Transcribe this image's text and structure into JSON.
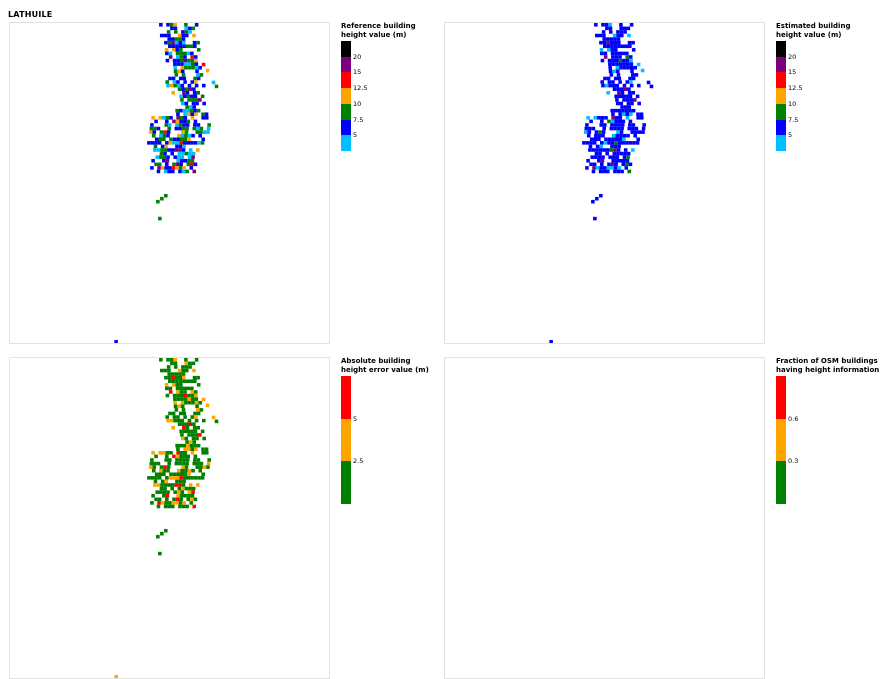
{
  "title": "LATHUILE",
  "panels": [
    {
      "id": "reference",
      "legend_title_lines": [
        "Reference building",
        "height value (m)"
      ],
      "scale": [
        {
          "color": "#000000",
          "from": 25,
          "to": 20
        },
        {
          "color": "#7b0080",
          "from": 20,
          "to": 15
        },
        {
          "color": "#ff0000",
          "from": 15,
          "to": 12.5
        },
        {
          "color": "#ffa500",
          "from": 12.5,
          "to": 10
        },
        {
          "color": "#008000",
          "from": 10,
          "to": 7.5
        },
        {
          "color": "#0000ff",
          "from": 7.5,
          "to": 5
        },
        {
          "color": "#00bfff",
          "from": 5,
          "to": 2.5
        }
      ],
      "ticks": [
        "20",
        "15",
        "12.5",
        "10",
        "7.5",
        "5"
      ]
    },
    {
      "id": "estimated",
      "legend_title_lines": [
        "Estimated building",
        "height value (m)"
      ],
      "scale": [
        {
          "color": "#000000",
          "from": 25,
          "to": 20
        },
        {
          "color": "#7b0080",
          "from": 20,
          "to": 15
        },
        {
          "color": "#ff0000",
          "from": 15,
          "to": 12.5
        },
        {
          "color": "#ffa500",
          "from": 12.5,
          "to": 10
        },
        {
          "color": "#008000",
          "from": 10,
          "to": 7.5
        },
        {
          "color": "#0000ff",
          "from": 7.5,
          "to": 5
        },
        {
          "color": "#00bfff",
          "from": 5,
          "to": 2.5
        }
      ],
      "ticks": [
        "20",
        "15",
        "12.5",
        "10",
        "7.5",
        "5"
      ]
    },
    {
      "id": "abs-error",
      "legend_title_lines": [
        "Absolute building",
        "height error value (m)"
      ],
      "scale": [
        {
          "color": "#ff0000",
          "from": 7.5,
          "to": 5
        },
        {
          "color": "#ffa500",
          "from": 5,
          "to": 2.5
        },
        {
          "color": "#008000",
          "from": 2.5,
          "to": 0
        }
      ],
      "ticks": [
        "5",
        "2.5"
      ]
    },
    {
      "id": "osm-fraction",
      "legend_title_lines": [
        "Fraction of OSM buildings",
        "having height information"
      ],
      "scale": [
        {
          "color": "#ff0000",
          "from": 0.9,
          "to": 0.6
        },
        {
          "color": "#ffa500",
          "from": 0.6,
          "to": 0.3
        },
        {
          "color": "#008000",
          "from": 0.3,
          "to": 0
        }
      ],
      "ticks": [
        "0.6",
        "0.3"
      ]
    }
  ]
}
